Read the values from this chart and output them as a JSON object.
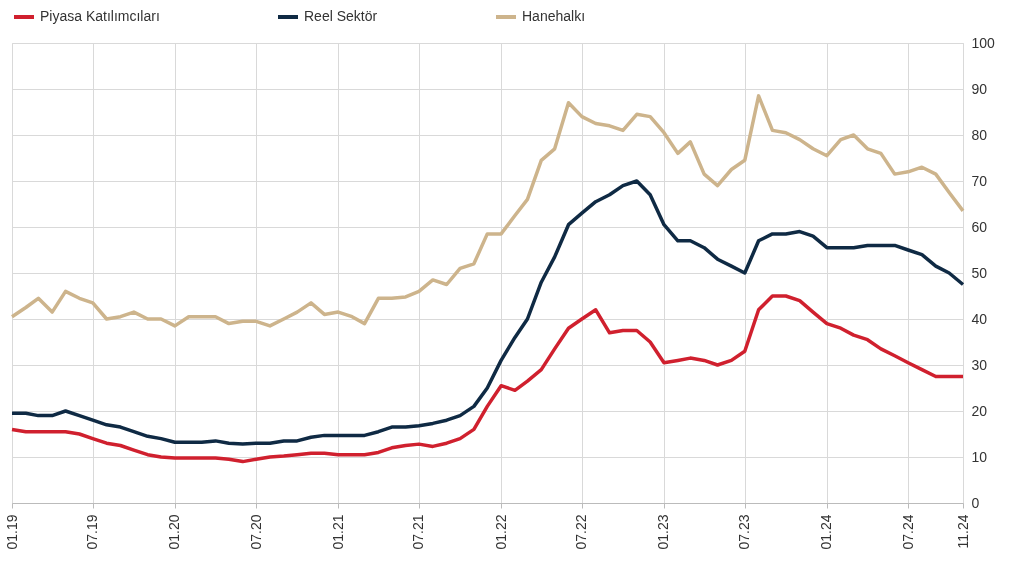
{
  "chart_data": {
    "type": "line",
    "x": [
      "2019-01",
      "2019-02",
      "2019-03",
      "2019-04",
      "2019-05",
      "2019-06",
      "2019-07",
      "2019-08",
      "2019-09",
      "2019-10",
      "2019-11",
      "2019-12",
      "2020-01",
      "2020-02",
      "2020-03",
      "2020-04",
      "2020-05",
      "2020-06",
      "2020-07",
      "2020-08",
      "2020-09",
      "2020-10",
      "2020-11",
      "2020-12",
      "2021-01",
      "2021-02",
      "2021-03",
      "2021-04",
      "2021-05",
      "2021-06",
      "2021-07",
      "2021-08",
      "2021-09",
      "2021-10",
      "2021-11",
      "2021-12",
      "2022-01",
      "2022-02",
      "2022-03",
      "2022-04",
      "2022-05",
      "2022-06",
      "2022-07",
      "2022-08",
      "2022-09",
      "2022-10",
      "2022-11",
      "2022-12",
      "2023-01",
      "2023-02",
      "2023-03",
      "2023-04",
      "2023-05",
      "2023-06",
      "2023-07",
      "2023-08",
      "2023-09",
      "2023-10",
      "2023-11",
      "2023-12",
      "2024-01",
      "2024-02",
      "2024-03",
      "2024-04",
      "2024-05",
      "2024-06",
      "2024-07",
      "2024-08",
      "2024-09",
      "2024-10",
      "2024-11"
    ],
    "series": [
      {
        "name": "Piyasa Katılımcıları",
        "color": "#d0202e",
        "values": [
          16,
          15.5,
          15.5,
          15.5,
          15.5,
          15,
          14,
          13,
          12.5,
          11.5,
          10.5,
          10,
          9.8,
          9.8,
          9.8,
          9.8,
          9.5,
          9,
          9.5,
          10,
          10.2,
          10.5,
          10.8,
          10.8,
          10.5,
          10.5,
          10.5,
          11,
          12,
          12.5,
          12.8,
          12.3,
          13,
          14,
          16,
          21,
          25.5,
          24.5,
          26.5,
          29,
          33.5,
          38,
          40,
          42,
          37,
          37.5,
          37.5,
          35,
          30.5,
          31,
          31.5,
          31,
          30,
          31,
          33,
          42,
          45,
          45,
          44,
          41.5,
          39,
          38,
          36.5,
          35.5,
          33.5,
          32,
          30.5,
          29,
          27.5,
          27.5,
          27.5
        ]
      },
      {
        "name": "Reel Sektör",
        "color": "#0f2a44",
        "values": [
          19.5,
          19.5,
          19,
          19,
          20,
          19,
          18,
          17,
          16.5,
          15.5,
          14.5,
          14,
          13.2,
          13.2,
          13.2,
          13.5,
          13,
          12.8,
          13,
          13,
          13.5,
          13.5,
          14.3,
          14.7,
          14.7,
          14.7,
          14.7,
          15.5,
          16.5,
          16.5,
          16.8,
          17.3,
          18,
          19,
          21,
          25,
          31,
          36,
          40,
          48,
          53.5,
          60.5,
          63,
          65.5,
          67,
          69,
          70,
          67,
          60.5,
          57,
          57,
          55.5,
          53,
          51.5,
          50,
          57,
          58.5,
          58.5,
          59,
          58,
          55.5,
          55.5,
          55.5,
          56,
          56,
          56,
          55,
          54,
          51.5,
          50,
          47.5
        ]
      },
      {
        "name": "Hanehalkı",
        "color": "#cdb48c",
        "values": [
          40.5,
          42.5,
          44.5,
          41.5,
          46,
          44.5,
          43.5,
          40,
          40.5,
          41.5,
          40,
          40,
          38.5,
          40.5,
          40.5,
          40.5,
          39,
          39.5,
          39.5,
          38.5,
          40,
          41.5,
          43.5,
          41,
          41.5,
          40.5,
          39,
          44.5,
          44.5,
          44.8,
          46,
          48.5,
          47.5,
          51,
          52,
          58.5,
          58.5,
          62.5,
          66,
          74.5,
          77,
          87,
          84,
          82.5,
          82,
          81,
          84.5,
          84,
          80.5,
          76,
          78.5,
          71.5,
          69,
          72.5,
          74.5,
          88.5,
          81,
          80.5,
          79,
          77,
          75.5,
          79,
          80,
          77,
          76,
          71.5,
          72,
          73,
          71.5,
          67.5,
          63.5
        ]
      }
    ],
    "xlim": [
      "2019-01",
      "2024-11"
    ],
    "xticks": [
      {
        "value": "2019-01",
        "label": "01.19"
      },
      {
        "value": "2019-07",
        "label": "07.19"
      },
      {
        "value": "2020-01",
        "label": "01.20"
      },
      {
        "value": "2020-07",
        "label": "07.20"
      },
      {
        "value": "2021-01",
        "label": "01.21"
      },
      {
        "value": "2021-07",
        "label": "07.21"
      },
      {
        "value": "2022-01",
        "label": "01.22"
      },
      {
        "value": "2022-07",
        "label": "07.22"
      },
      {
        "value": "2023-01",
        "label": "01.23"
      },
      {
        "value": "2023-07",
        "label": "07.23"
      },
      {
        "value": "2024-01",
        "label": "01.24"
      },
      {
        "value": "2024-07",
        "label": "07.24"
      },
      {
        "value": "2024-11",
        "label": "11.24"
      }
    ],
    "ylim": [
      0,
      100
    ],
    "yticks": [
      0,
      10,
      20,
      30,
      40,
      50,
      60,
      70,
      80,
      90,
      100
    ],
    "grid": true,
    "legend": "top",
    "line_style": "solid"
  }
}
